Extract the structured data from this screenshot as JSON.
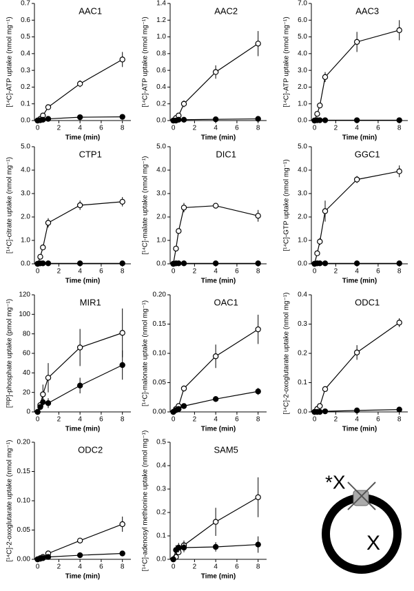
{
  "chart_data": [
    {
      "type": "line",
      "title": "AAC1",
      "ylabel": "[¹⁴C]-ATP uptake (nmol  mg⁻¹)",
      "xlabel": "Time (min)",
      "x": [
        0,
        0.25,
        0.5,
        1,
        4,
        8
      ],
      "xlim": [
        -0.3,
        8.8
      ],
      "xticks": [
        0,
        2,
        4,
        6,
        8
      ],
      "ylim": [
        0,
        0.7
      ],
      "yticks": [
        {
          "value": 0,
          "label": "0.0"
        },
        0.1,
        0.2,
        0.3,
        0.4,
        0.5,
        0.6,
        0.7
      ],
      "series": [
        {
          "color": "#ffffff",
          "values": [
            0,
            0.01,
            0.03,
            0.08,
            0.22,
            0.365
          ],
          "errors": [
            0,
            0,
            0.005,
            0.01,
            0.02,
            0.045
          ]
        },
        {
          "color": "#000000",
          "values": [
            0,
            0.002,
            0.005,
            0.01,
            0.02,
            0.022
          ],
          "errors": [
            0,
            0,
            0,
            0,
            0,
            0
          ]
        }
      ]
    },
    {
      "type": "line",
      "title": "AAC2",
      "ylabel": "[¹⁴C]-ATP uptake (nmol  mg⁻¹)",
      "xlabel": "Time (min)",
      "x": [
        0,
        0.25,
        0.5,
        1,
        4,
        8
      ],
      "xlim": [
        -0.3,
        8.8
      ],
      "xticks": [
        0,
        2,
        4,
        6,
        8
      ],
      "ylim": [
        0,
        1.4
      ],
      "yticks": [
        {
          "value": 0,
          "label": "0.0"
        },
        0.2,
        0.4,
        0.6,
        0.8,
        {
          "value": 1,
          "label": "1.0"
        },
        1.2,
        1.4
      ],
      "series": [
        {
          "color": "#ffffff",
          "values": [
            0,
            0.03,
            0.06,
            0.2,
            0.58,
            0.92
          ],
          "errors": [
            0,
            0,
            0.01,
            0.04,
            0.08,
            0.15
          ]
        },
        {
          "color": "#000000",
          "values": [
            0,
            0,
            0.01,
            0.01,
            0.015,
            0.02
          ],
          "errors": [
            0,
            0,
            0,
            0,
            0,
            0
          ]
        }
      ]
    },
    {
      "type": "line",
      "title": "AAC3",
      "ylabel": "[¹⁴C]-ATP uptake (nmol  mg⁻¹)",
      "xlabel": "Time (min)",
      "x": [
        0,
        0.25,
        0.5,
        1,
        4,
        8
      ],
      "xlim": [
        -0.3,
        8.8
      ],
      "xticks": [
        0,
        2,
        4,
        6,
        8
      ],
      "ylim": [
        0,
        7
      ],
      "yticks": [
        {
          "value": 0,
          "label": "0.0"
        },
        {
          "value": 1,
          "label": "1.0"
        },
        {
          "value": 2,
          "label": "2.0"
        },
        {
          "value": 3,
          "label": "3.0"
        },
        {
          "value": 4,
          "label": "4.0"
        },
        {
          "value": 5,
          "label": "5.0"
        },
        {
          "value": 6,
          "label": "6.0"
        },
        {
          "value": 7,
          "label": "7.0"
        }
      ],
      "series": [
        {
          "color": "#ffffff",
          "values": [
            0,
            0.4,
            0.9,
            2.6,
            4.7,
            5.4
          ],
          "errors": [
            0,
            0.1,
            0.15,
            0.3,
            0.6,
            0.6
          ]
        },
        {
          "color": "#000000",
          "values": [
            0,
            0.02,
            0.02,
            0.02,
            0.02,
            0.02
          ],
          "errors": [
            0,
            0,
            0,
            0,
            0,
            0
          ]
        }
      ]
    },
    {
      "type": "line",
      "title": "CTP1",
      "ylabel": "[¹⁴C]-citrate uptake (nmol  mg⁻¹)",
      "xlabel": "Time (min)",
      "x": [
        0,
        0.25,
        0.5,
        1,
        4,
        8
      ],
      "xlim": [
        -0.3,
        8.8
      ],
      "xticks": [
        0,
        2,
        4,
        6,
        8
      ],
      "ylim": [
        0,
        5
      ],
      "yticks": [
        {
          "value": 0,
          "label": "0.0"
        },
        {
          "value": 1,
          "label": "1.0"
        },
        {
          "value": 2,
          "label": "2.0"
        },
        {
          "value": 3,
          "label": "3.0"
        },
        {
          "value": 4,
          "label": "4.0"
        },
        {
          "value": 5,
          "label": "5.0"
        }
      ],
      "series": [
        {
          "color": "#ffffff",
          "values": [
            0,
            0.3,
            0.7,
            1.75,
            2.5,
            2.65
          ],
          "errors": [
            0,
            0,
            0.1,
            0.2,
            0.2,
            0.2
          ]
        },
        {
          "color": "#000000",
          "values": [
            0,
            0.02,
            0.02,
            0.02,
            0.02,
            0.02
          ],
          "errors": [
            0,
            0,
            0,
            0,
            0,
            0
          ]
        }
      ]
    },
    {
      "type": "line",
      "title": "DIC1",
      "ylabel": "[¹⁴C]-malate uptake (nmol  mg⁻¹)",
      "xlabel": "Time (min)",
      "x": [
        0,
        0.25,
        0.5,
        1,
        4,
        8
      ],
      "xlim": [
        -0.3,
        8.8
      ],
      "xticks": [
        0,
        2,
        4,
        6,
        8
      ],
      "ylim": [
        0,
        5
      ],
      "yticks": [
        {
          "value": 0,
          "label": "0.0"
        },
        {
          "value": 1,
          "label": "1.0"
        },
        {
          "value": 2,
          "label": "2.0"
        },
        {
          "value": 3,
          "label": "3.0"
        },
        {
          "value": 4,
          "label": "4.0"
        },
        {
          "value": 5,
          "label": "5.0"
        }
      ],
      "series": [
        {
          "color": "#ffffff",
          "values": [
            0,
            0.65,
            1.4,
            2.4,
            2.48,
            2.05
          ],
          "errors": [
            0,
            0,
            0.1,
            0.2,
            0.1,
            0.25
          ]
        },
        {
          "color": "#000000",
          "values": [
            0,
            0.02,
            0.02,
            0.02,
            0.02,
            0.02
          ],
          "errors": [
            0,
            0,
            0,
            0,
            0,
            0
          ]
        }
      ]
    },
    {
      "type": "line",
      "title": "GGC1",
      "ylabel": "[¹⁴C]-GTP uptake (nmol  mg⁻¹)",
      "xlabel": "Time (min)",
      "x": [
        0,
        0.25,
        0.5,
        1,
        4,
        8
      ],
      "xlim": [
        -0.3,
        8.8
      ],
      "xticks": [
        0,
        2,
        4,
        6,
        8
      ],
      "ylim": [
        0,
        5
      ],
      "yticks": [
        {
          "value": 0,
          "label": "0.0"
        },
        {
          "value": 1,
          "label": "1.0"
        },
        {
          "value": 2,
          "label": "2.0"
        },
        {
          "value": 3,
          "label": "3.0"
        },
        {
          "value": 4,
          "label": "4.0"
        },
        {
          "value": 5,
          "label": "5.0"
        }
      ],
      "series": [
        {
          "color": "#ffffff",
          "values": [
            0,
            0.45,
            0.95,
            2.25,
            3.6,
            3.95
          ],
          "errors": [
            0,
            0.05,
            0.15,
            0.45,
            0.15,
            0.25
          ]
        },
        {
          "color": "#000000",
          "values": [
            0,
            0.02,
            0.02,
            0.02,
            0.02,
            0.02
          ],
          "errors": [
            0,
            0,
            0,
            0,
            0,
            0
          ]
        }
      ]
    },
    {
      "type": "line",
      "title": "MIR1",
      "ylabel": "[³³P]-phosphate uptake (pmol  mg⁻¹)",
      "xlabel": "Time (min)",
      "x": [
        0,
        0.25,
        0.5,
        1,
        4,
        8
      ],
      "xlim": [
        -0.3,
        8.8
      ],
      "xticks": [
        0,
        2,
        4,
        6,
        8
      ],
      "ylim": [
        0,
        120
      ],
      "yticks": [
        0,
        20,
        40,
        60,
        80,
        100,
        120
      ],
      "series": [
        {
          "color": "#ffffff",
          "values": [
            0,
            7,
            18,
            35,
            66,
            81
          ],
          "errors": [
            0,
            2,
            10,
            15,
            19,
            25
          ]
        },
        {
          "color": "#000000",
          "values": [
            0,
            5,
            10,
            9,
            27,
            48
          ],
          "errors": [
            0,
            2,
            5,
            5,
            8,
            15
          ]
        }
      ]
    },
    {
      "type": "line",
      "title": "OAC1",
      "ylabel": "[¹⁴C]-malonate uptake (nmol  mg⁻¹)",
      "xlabel": "Time (min)",
      "x": [
        0,
        0.25,
        0.5,
        1,
        4,
        8
      ],
      "xlim": [
        -0.3,
        8.8
      ],
      "xticks": [
        0,
        2,
        4,
        6,
        8
      ],
      "ylim": [
        0,
        0.2
      ],
      "yticks": [
        {
          "value": 0,
          "label": "0.00"
        },
        {
          "value": 0.05,
          "label": "0.05"
        },
        {
          "value": 0.1,
          "label": "0.10"
        },
        {
          "value": 0.15,
          "label": "0.15"
        },
        {
          "value": 0.2,
          "label": "0.20"
        }
      ],
      "series": [
        {
          "color": "#ffffff",
          "values": [
            0,
            0.005,
            0.01,
            0.04,
            0.095,
            0.141
          ],
          "errors": [
            0,
            0,
            0.002,
            0.005,
            0.02,
            0.025
          ]
        },
        {
          "color": "#000000",
          "values": [
            0,
            0.003,
            0.005,
            0.01,
            0.022,
            0.035
          ],
          "errors": [
            0,
            0,
            0,
            0.002,
            0.005,
            0.006
          ]
        }
      ]
    },
    {
      "type": "line",
      "title": "ODC1",
      "ylabel": "[¹⁴C]-2-oxoglutarate uptake (nmol  mg⁻¹)",
      "xlabel": "Time (min)",
      "x": [
        0,
        0.25,
        0.5,
        1,
        4,
        8
      ],
      "xlim": [
        -0.3,
        8.8
      ],
      "xticks": [
        0,
        2,
        4,
        6,
        8
      ],
      "ylim": [
        0,
        0.4
      ],
      "yticks": [
        {
          "value": 0,
          "label": "0.0"
        },
        0.1,
        0.2,
        0.3,
        0.4
      ],
      "series": [
        {
          "color": "#ffffff",
          "values": [
            0,
            0.01,
            0.02,
            0.078,
            0.203,
            0.305
          ],
          "errors": [
            0,
            0,
            0,
            0.005,
            0.025,
            0.015
          ]
        },
        {
          "color": "#000000",
          "values": [
            0,
            0,
            0,
            0.002,
            0.005,
            0.008
          ],
          "errors": [
            0,
            0,
            0,
            0,
            0,
            0
          ]
        }
      ]
    },
    {
      "type": "line",
      "title": "ODC2",
      "ylabel": "[¹⁴C]-2-oxoglutarate uptake (nmol  mg⁻¹)",
      "xlabel": "Time (min)",
      "x": [
        0,
        0.25,
        0.5,
        1,
        4,
        8
      ],
      "xlim": [
        -0.3,
        8.8
      ],
      "xticks": [
        0,
        2,
        4,
        6,
        8
      ],
      "ylim": [
        0,
        0.2
      ],
      "yticks": [
        {
          "value": 0,
          "label": "0.00"
        },
        {
          "value": 0.05,
          "label": "0.05"
        },
        {
          "value": 0.1,
          "label": "0.10"
        },
        {
          "value": 0.15,
          "label": "0.15"
        },
        {
          "value": 0.2,
          "label": "0.20"
        }
      ],
      "series": [
        {
          "color": "#ffffff",
          "values": [
            0,
            0.002,
            0.004,
            0.01,
            0.032,
            0.06
          ],
          "errors": [
            0,
            0,
            0,
            0.002,
            0.002,
            0.013
          ]
        },
        {
          "color": "#000000",
          "values": [
            0,
            0.001,
            0.002,
            0.004,
            0.007,
            0.01
          ],
          "errors": [
            0,
            0,
            0,
            0,
            0,
            0
          ]
        }
      ]
    },
    {
      "type": "line",
      "title": "SAM5",
      "ylabel": "[¹⁴C]-adenosyl methionine uptake (nmol  mg⁻¹)",
      "xlabel": "Time (min)",
      "x": [
        0,
        0.25,
        0.5,
        1,
        4,
        8
      ],
      "xlim": [
        -0.3,
        8.8
      ],
      "xticks": [
        0,
        2,
        4,
        6,
        8
      ],
      "ylim": [
        0,
        0.5
      ],
      "yticks": [
        {
          "value": 0,
          "label": "0.0"
        },
        0.1,
        0.2,
        0.3,
        0.4,
        0.5
      ],
      "series": [
        {
          "color": "#ffffff",
          "values": [
            0,
            0.01,
            0.03,
            0.06,
            0.16,
            0.265
          ],
          "errors": [
            0,
            0.005,
            0.01,
            0.02,
            0.06,
            0.085
          ]
        },
        {
          "color": "#000000",
          "values": [
            0,
            0.04,
            0.05,
            0.05,
            0.053,
            0.063
          ],
          "errors": [
            0,
            0.02,
            0.02,
            0.02,
            0.02,
            0.035
          ]
        }
      ]
    }
  ],
  "diagram": {
    "outside_label": "*X",
    "inside_label": "X"
  }
}
